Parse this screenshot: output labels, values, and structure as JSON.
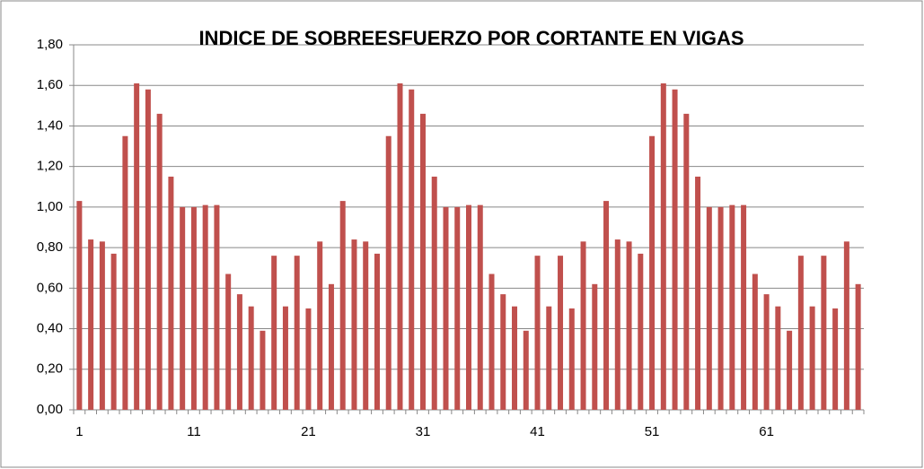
{
  "chart_data": {
    "type": "bar",
    "title": "INDICE DE SOBREESFUERZO POR CORTANTE EN VIGAS",
    "categories": [
      "1",
      null,
      null,
      null,
      null,
      null,
      null,
      null,
      null,
      null,
      "11",
      null,
      null,
      null,
      null,
      null,
      null,
      null,
      null,
      null,
      "21",
      null,
      null,
      null,
      null,
      null,
      null,
      null,
      null,
      null,
      "31",
      null,
      null,
      null,
      null,
      null,
      null,
      null,
      null,
      null,
      "41",
      null,
      null,
      null,
      null,
      null,
      null,
      null,
      null,
      null,
      "51",
      null,
      null,
      null,
      null,
      null,
      null,
      null,
      null,
      null,
      "61",
      null,
      null,
      null,
      null,
      null,
      null,
      null,
      null
    ],
    "values": [
      1.03,
      0.84,
      0.83,
      0.77,
      1.35,
      1.61,
      1.58,
      1.46,
      1.15,
      1.0,
      1.0,
      1.01,
      1.01,
      0.67,
      0.57,
      0.51,
      0.39,
      0.76,
      0.51,
      0.76,
      0.5,
      0.83,
      0.62,
      1.03,
      0.84,
      0.83,
      0.77,
      1.35,
      1.61,
      1.58,
      1.46,
      1.15,
      1.0,
      1.0,
      1.01,
      1.01,
      0.67,
      0.57,
      0.51,
      0.39,
      0.76,
      0.51,
      0.76,
      0.5,
      0.83,
      0.62,
      1.03,
      0.84,
      0.83,
      0.77,
      1.35,
      1.61,
      1.58,
      1.46,
      1.15,
      1.0,
      1.0,
      1.01,
      1.01,
      0.67,
      0.57,
      0.51,
      0.39,
      0.76,
      0.51,
      0.76,
      0.5,
      0.83,
      0.62
    ],
    "color": "#c0504d",
    "ylim": [
      0,
      1.8
    ],
    "yticks": [
      {
        "value": 0,
        "label": "0,00"
      },
      {
        "value": 0.2,
        "label": "0,20"
      },
      {
        "value": 0.4,
        "label": "0,40"
      },
      {
        "value": 0.6,
        "label": "0,60"
      },
      {
        "value": 0.8,
        "label": "0,80"
      },
      {
        "value": 1.0,
        "label": "1,00"
      },
      {
        "value": 1.2,
        "label": "1,20"
      },
      {
        "value": 1.4,
        "label": "1,40"
      },
      {
        "value": 1.6,
        "label": "1,60"
      },
      {
        "value": 1.8,
        "label": "1,80"
      }
    ],
    "grid": true
  }
}
